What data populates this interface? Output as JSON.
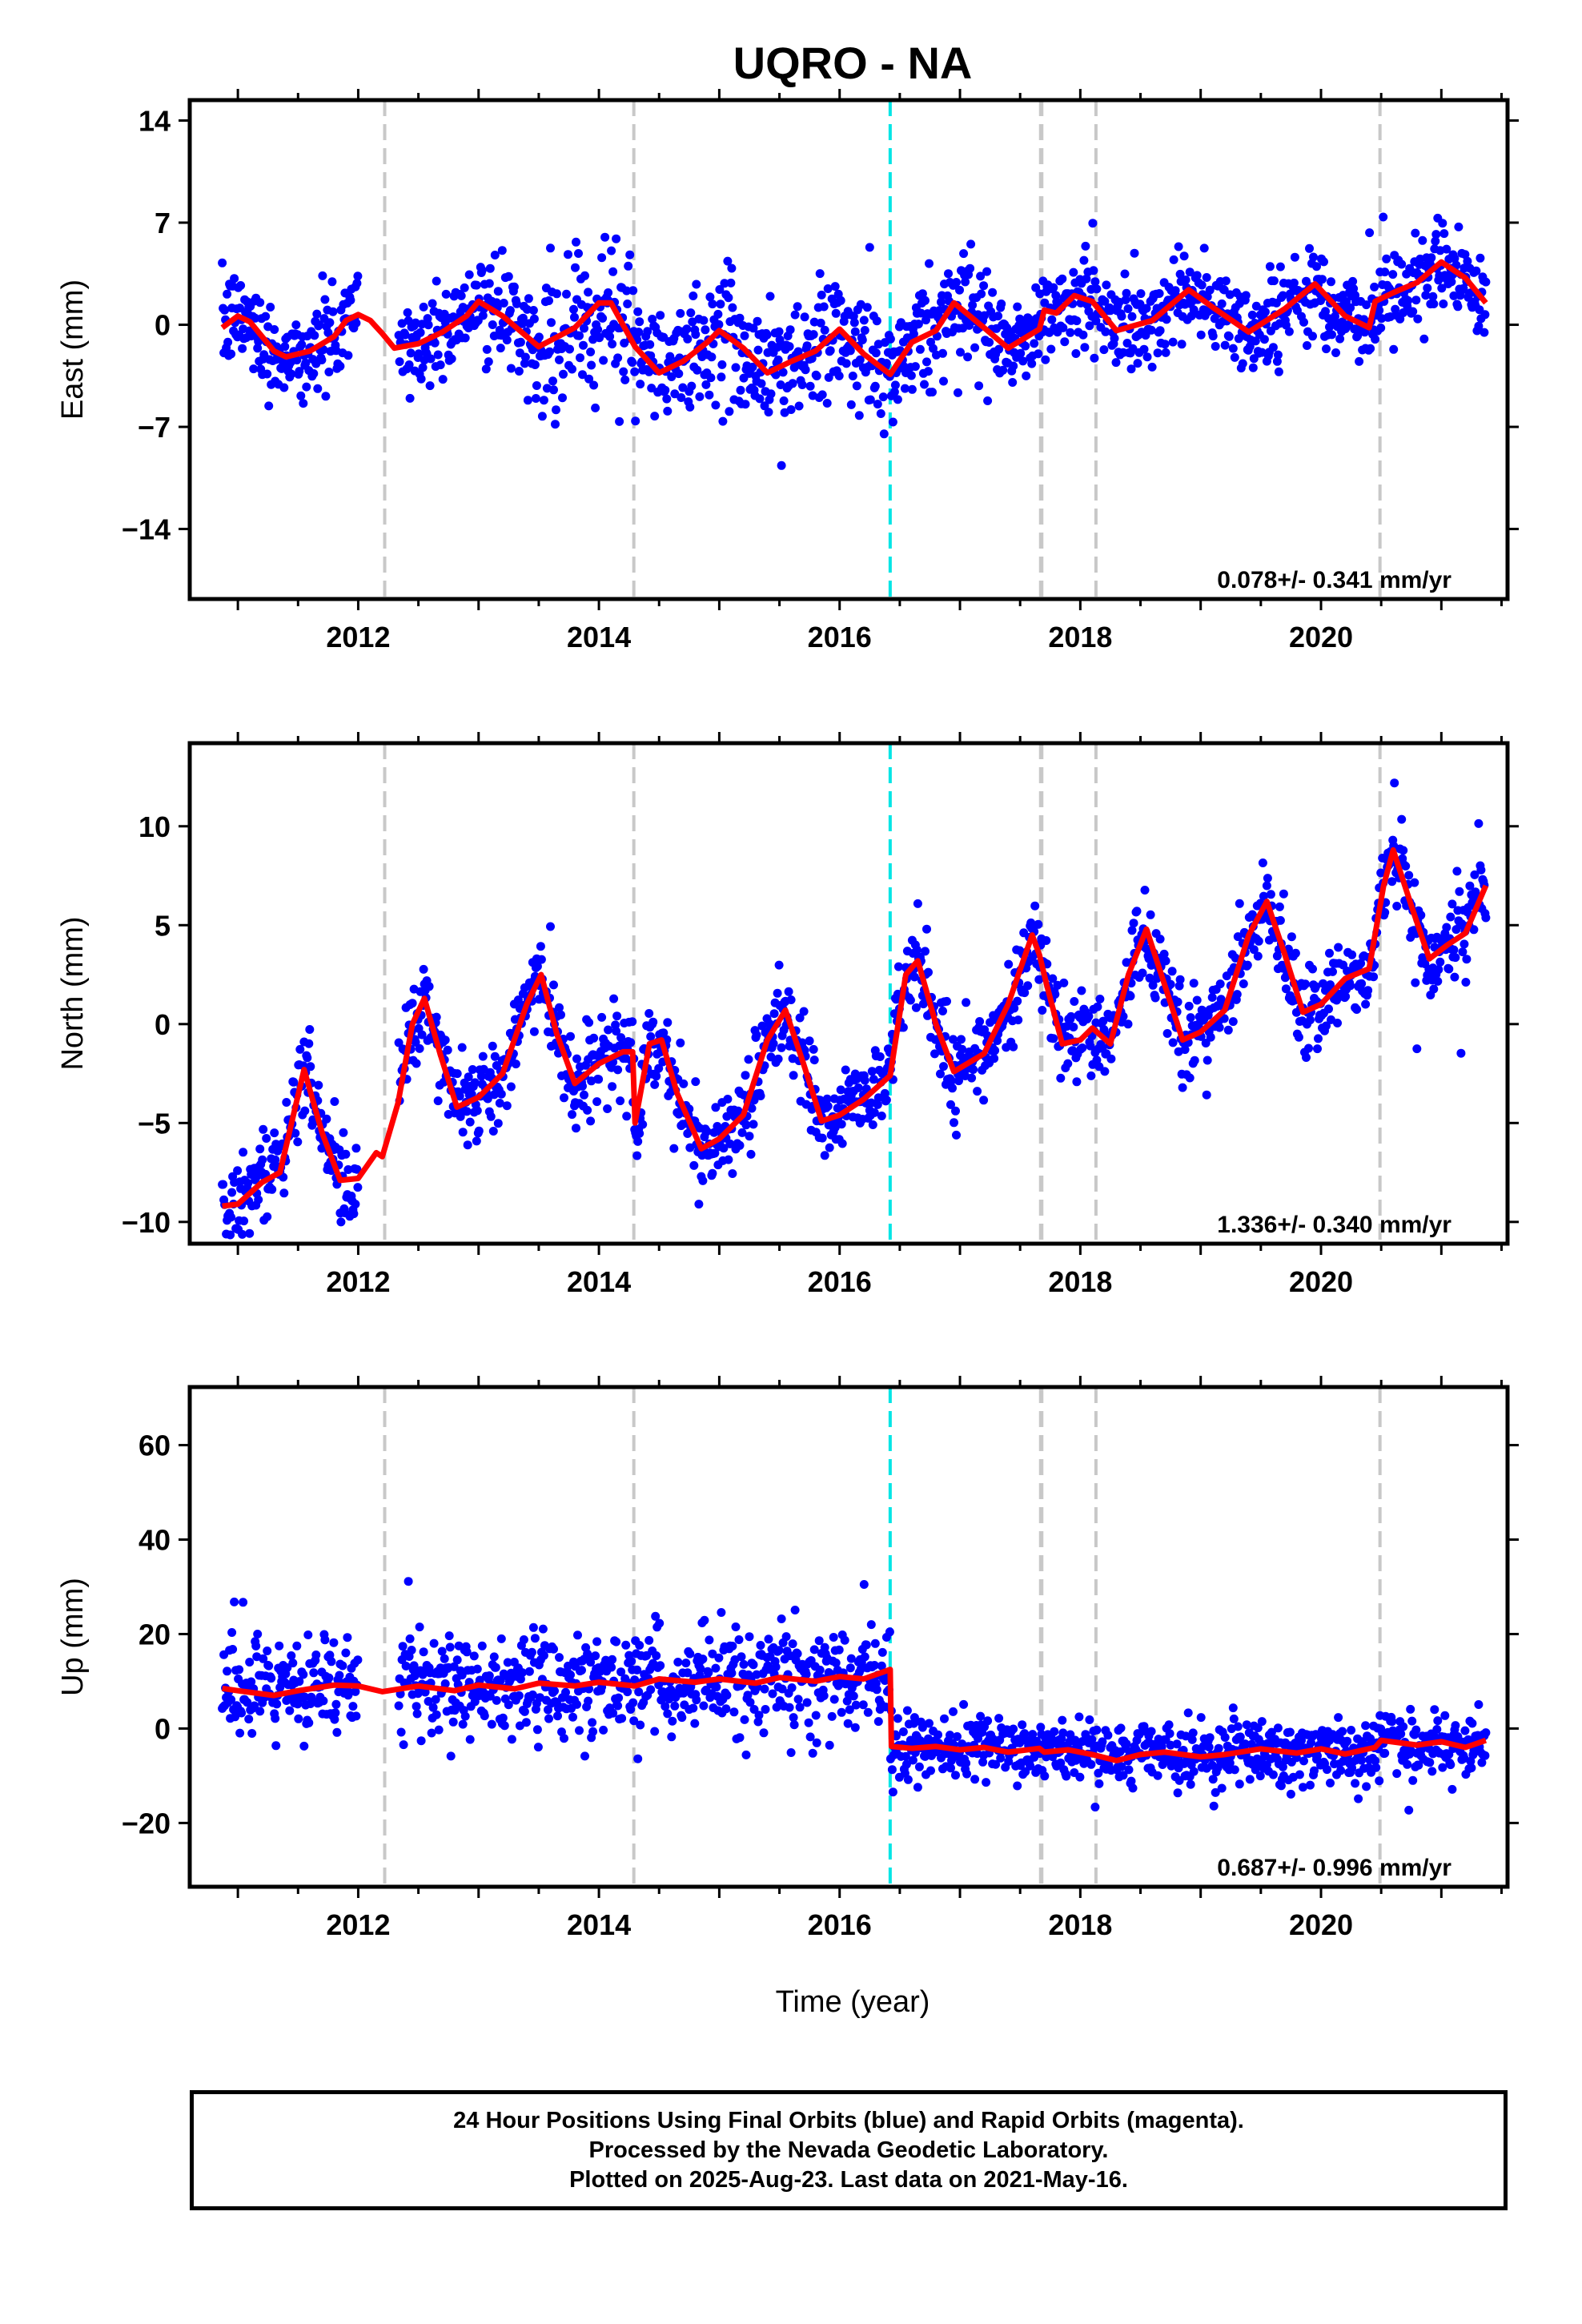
{
  "figure": {
    "title": "UQRO - NA",
    "xlabel": "Time (year)",
    "footer": [
      "24 Hour Positions Using Final Orbits (blue) and Rapid Orbits (magenta).",
      "Processed by the Nevada Geodetic Laboratory.",
      "Plotted on 2025-Aug-23. Last data on 2021-May-16."
    ]
  },
  "colors": {
    "data_points": "#0000ff",
    "model_fit": "#ff0000",
    "equipment_change": "#c8c8c8",
    "reference_event": "#00e5e5",
    "frame": "#000000"
  },
  "chart_data": [
    {
      "type": "scatter",
      "panel": "east",
      "ylabel": "East (mm)",
      "rate_text": "0.078+/- 0.341 mm/yr",
      "xlim": [
        2010.6,
        2021.55
      ],
      "ylim": [
        -18.8,
        15.4
      ],
      "x_ticks": [
        2012,
        2014,
        2016,
        2018,
        2020
      ],
      "y_ticks": [
        -14,
        -7,
        0,
        7,
        14
      ],
      "data_range": [
        2010.87,
        2021.37
      ],
      "gap": [
        2012.0,
        2012.33
      ],
      "model_line": {
        "x": [
          2010.87,
          2011.0,
          2011.1,
          2011.3,
          2011.4,
          2011.6,
          2011.8,
          2011.9,
          2012.0,
          2012.1,
          2012.2,
          2012.3,
          2012.5,
          2012.7,
          2012.9,
          2013.0,
          2013.2,
          2013.5,
          2013.8,
          2014.0,
          2014.1,
          2014.3,
          2014.5,
          2014.7,
          2014.9,
          2015.0,
          2015.2,
          2015.4,
          2015.6,
          2015.8,
          2016.0,
          2016.2,
          2016.42,
          2016.6,
          2016.8,
          2016.95,
          2017.2,
          2017.4,
          2017.66,
          2017.7,
          2017.8,
          2017.95,
          2018.1,
          2018.3,
          2018.6,
          2018.9,
          2019.1,
          2019.4,
          2019.7,
          2019.95,
          2020.2,
          2020.4,
          2020.45,
          2020.6,
          2020.8,
          2021.0,
          2021.2,
          2021.37
        ],
        "y": [
          -0.2,
          0.6,
          0.2,
          -1.8,
          -2.2,
          -1.8,
          -0.8,
          0.3,
          0.7,
          0.3,
          -0.6,
          -1.6,
          -1.3,
          -0.5,
          0.6,
          1.6,
          0.6,
          -1.5,
          -0.2,
          1.5,
          1.5,
          -1.5,
          -3.3,
          -2.5,
          -1.2,
          -0.4,
          -1.6,
          -3.3,
          -2.5,
          -1.8,
          -0.3,
          -2.0,
          -3.4,
          -1.2,
          -0.4,
          1.5,
          -0.2,
          -1.6,
          -0.3,
          1.0,
          0.8,
          2.0,
          1.6,
          -0.4,
          0.3,
          2.4,
          1.2,
          -0.5,
          1.1,
          2.8,
          0.6,
          -0.2,
          1.6,
          2.2,
          2.9,
          4.3,
          3.2,
          1.5
        ]
      }
    },
    {
      "type": "scatter",
      "panel": "north",
      "ylabel": "North (mm)",
      "rate_text": "1.336+/- 0.340 mm/yr",
      "xlim": [
        2010.6,
        2021.55
      ],
      "ylim": [
        -11.1,
        14.2
      ],
      "x_ticks": [
        2012,
        2014,
        2016,
        2018,
        2020
      ],
      "y_ticks": [
        -10,
        -5,
        0,
        5,
        10
      ],
      "data_range": [
        2010.87,
        2021.37
      ],
      "gap": [
        2012.0,
        2012.33
      ],
      "model_line": {
        "x": [
          2010.87,
          2011.0,
          2011.2,
          2011.35,
          2011.55,
          2011.7,
          2011.85,
          2012.0,
          2012.15,
          2012.2,
          2012.33,
          2012.45,
          2012.55,
          2012.68,
          2012.82,
          2013.0,
          2013.2,
          2013.4,
          2013.52,
          2013.65,
          2013.8,
          2014.0,
          2014.2,
          2014.28,
          2014.3,
          2014.42,
          2014.52,
          2014.65,
          2014.85,
          2015.0,
          2015.2,
          2015.4,
          2015.55,
          2015.7,
          2015.85,
          2016.0,
          2016.2,
          2016.42,
          2016.55,
          2016.65,
          2016.8,
          2016.95,
          2017.2,
          2017.4,
          2017.6,
          2017.66,
          2017.72,
          2017.85,
          2018.0,
          2018.1,
          2018.25,
          2018.4,
          2018.55,
          2018.7,
          2018.85,
          2019.0,
          2019.2,
          2019.4,
          2019.55,
          2019.7,
          2019.85,
          2020.0,
          2020.2,
          2020.4,
          2020.52,
          2020.6,
          2020.75,
          2020.9,
          2021.05,
          2021.2,
          2021.37
        ],
        "y": [
          -9.2,
          -9.1,
          -8.0,
          -7.5,
          -2.3,
          -5.5,
          -7.9,
          -7.8,
          -6.5,
          -6.7,
          -4.0,
          0.0,
          1.3,
          -1.5,
          -4.2,
          -3.7,
          -2.5,
          1.0,
          2.5,
          -0.5,
          -3.0,
          -2.0,
          -1.4,
          -1.4,
          -5.0,
          -1.0,
          -0.8,
          -3.5,
          -6.3,
          -5.8,
          -4.6,
          -0.8,
          0.7,
          -2.0,
          -4.9,
          -4.6,
          -3.8,
          -2.6,
          2.5,
          3.2,
          0.0,
          -2.4,
          -1.5,
          1.0,
          4.5,
          3.5,
          2.0,
          -1.0,
          -0.8,
          -0.2,
          -1.0,
          2.5,
          4.8,
          2.0,
          -0.8,
          -0.4,
          0.7,
          4.5,
          6.2,
          3.5,
          0.6,
          1.0,
          2.3,
          2.8,
          7.0,
          8.8,
          6.0,
          3.3,
          4.0,
          4.6,
          7.0
        ]
      }
    },
    {
      "type": "scatter",
      "panel": "up",
      "ylabel": "Up (mm)",
      "rate_text": "0.687+/- 0.996 mm/yr",
      "xlim": [
        2010.6,
        2021.55
      ],
      "ylim": [
        -33.5,
        72.3
      ],
      "x_ticks": [
        2012,
        2014,
        2016,
        2018,
        2020
      ],
      "y_ticks": [
        -20,
        0,
        20,
        40,
        60
      ],
      "data_range": [
        2010.87,
        2021.37
      ],
      "gap": [
        2012.0,
        2012.33
      ],
      "model_line": {
        "x": [
          2010.87,
          2011.0,
          2011.3,
          2011.5,
          2011.8,
          2012.0,
          2012.2,
          2012.5,
          2012.8,
          2013.0,
          2013.3,
          2013.5,
          2013.8,
          2014.0,
          2014.3,
          2014.5,
          2014.8,
          2015.0,
          2015.3,
          2015.5,
          2015.8,
          2016.0,
          2016.2,
          2016.42,
          2016.43,
          2016.6,
          2016.8,
          2017.0,
          2017.2,
          2017.4,
          2017.66,
          2017.7,
          2017.9,
          2018.1,
          2018.3,
          2018.5,
          2018.7,
          2019.0,
          2019.2,
          2019.5,
          2019.8,
          2020.0,
          2020.2,
          2020.45,
          2020.5,
          2020.8,
          2021.0,
          2021.2,
          2021.37
        ],
        "y": [
          8.5,
          8.0,
          7.0,
          8.0,
          9.2,
          9.0,
          7.8,
          9.0,
          8.0,
          9.2,
          8.4,
          9.6,
          9.0,
          9.8,
          9.0,
          10.5,
          9.8,
          10.5,
          9.6,
          10.8,
          10.0,
          11.0,
          10.5,
          12.5,
          -3.8,
          -4.2,
          -3.8,
          -4.5,
          -4.0,
          -5.0,
          -4.2,
          -5.0,
          -4.5,
          -5.5,
          -6.8,
          -5.5,
          -5.0,
          -6.0,
          -5.5,
          -4.3,
          -5.2,
          -4.3,
          -5.4,
          -4.0,
          -2.5,
          -3.5,
          -2.8,
          -4.0,
          -2.5
        ]
      }
    }
  ],
  "event_lines": {
    "equipment_years": [
      2012.22,
      2014.29,
      2017.67,
      2017.68,
      2018.13,
      2020.49
    ],
    "reference_years": [
      2016.42
    ]
  }
}
